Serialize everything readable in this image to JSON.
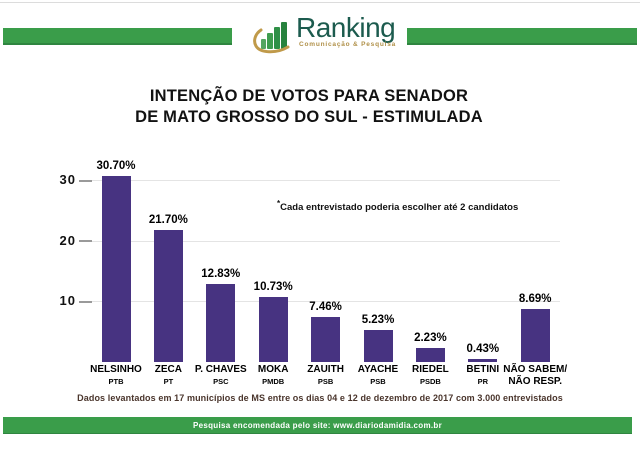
{
  "logo": {
    "brand": "Ranking",
    "tagline": "Comunicação & Pesquisa"
  },
  "title": {
    "line1": "INTENÇÃO DE VOTOS PARA SENADOR",
    "line2": "DE MATO GROSSO DO SUL - ESTIMULADA"
  },
  "note": {
    "marker": "*",
    "text": "Cada entrevistado poderia escolher até 2 candidatos"
  },
  "footer": {
    "source_line": "Dados levantados em 17 municípios de MS entre os dias 04 e 12 de dezembro de 2017 com 3.000 entrevistados",
    "banner_line": "Pesquisa encomendada pelo site: www.diariodamidia.com.br"
  },
  "colors": {
    "brand_green": "#3a9d4a",
    "bar_purple": "#473381",
    "logo_teal": "#1c5b4e",
    "logo_gold": "#c09a4a",
    "source_text": "#4a352c"
  },
  "chart_data": {
    "type": "bar",
    "title": "INTENÇÃO DE VOTOS PARA SENADOR DE MATO GROSSO DO SUL - ESTIMULADA",
    "xlabel": "",
    "ylabel": "",
    "ylim": [
      0,
      33
    ],
    "yticks": [
      30,
      20,
      10
    ],
    "grid": true,
    "legend": false,
    "bar_color": "#473381",
    "categories": [
      "NELSINHO (PTB)",
      "ZECA (PT)",
      "P. CHAVES (PSC)",
      "MOKA (PMDB)",
      "ZAUITH (PSB)",
      "AYACHE (PSB)",
      "RIEDEL (PSDB)",
      "BETINI (PR)",
      "NÃO SABEM/NÃO RESP."
    ],
    "values": [
      30.7,
      21.7,
      12.83,
      10.73,
      7.46,
      5.23,
      2.23,
      0.43,
      8.69
    ],
    "value_labels": [
      "30.70%",
      "21.70%",
      "12.83%",
      "10.73%",
      "7.46%",
      "5.23%",
      "2.23%",
      "0.43%",
      "8.69%"
    ],
    "candidates": [
      {
        "name": "NELSINHO",
        "party": "PTB",
        "value": 30.7,
        "label": "30.70%"
      },
      {
        "name": "ZECA",
        "party": "PT",
        "value": 21.7,
        "label": "21.70%"
      },
      {
        "name": "P. CHAVES",
        "party": "PSC",
        "value": 12.83,
        "label": "12.83%"
      },
      {
        "name": "MOKA",
        "party": "PMDB",
        "value": 10.73,
        "label": "10.73%"
      },
      {
        "name": "ZAUITH",
        "party": "PSB",
        "value": 7.46,
        "label": "7.46%"
      },
      {
        "name": "AYACHE",
        "party": "PSB",
        "value": 5.23,
        "label": "5.23%"
      },
      {
        "name": "RIEDEL",
        "party": "PSDB",
        "value": 2.23,
        "label": "2.23%"
      },
      {
        "name": "BETINI",
        "party": "PR",
        "value": 0.43,
        "label": "0.43%"
      },
      {
        "name": "NÃO SABEM/",
        "party": "NÃO RESP.",
        "value": 8.69,
        "label": "8.69%",
        "party_full_size": true
      }
    ]
  }
}
